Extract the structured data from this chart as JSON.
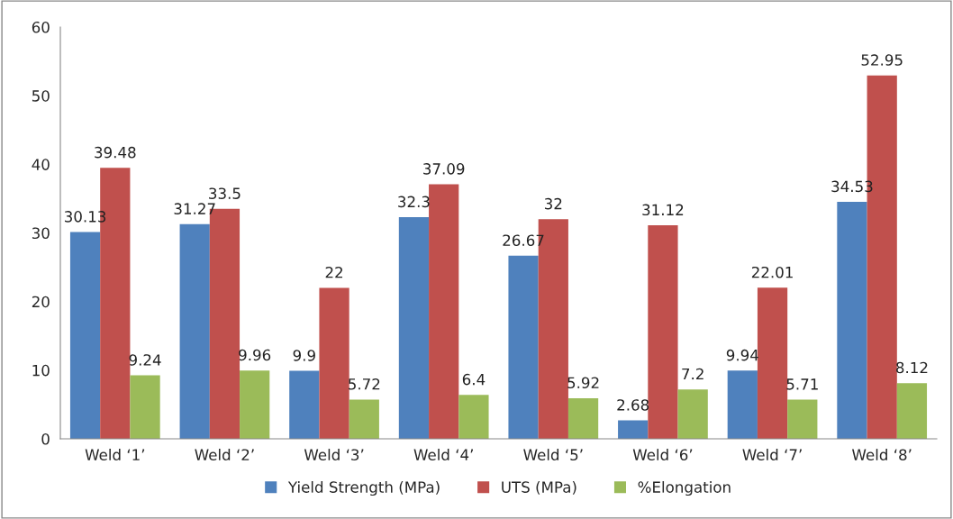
{
  "chart_data": {
    "type": "bar",
    "categories": [
      "Weld ‘1’",
      "Weld ‘2’",
      "Weld ‘3’",
      "Weld ‘4’",
      "Weld ‘5’",
      "Weld ‘6’",
      "Weld ‘7’",
      "Weld ‘8’"
    ],
    "series": [
      {
        "name": "Yield Strength (MPa)",
        "color": "#4f81bd",
        "values": [
          30.13,
          31.27,
          9.9,
          32.3,
          26.67,
          2.68,
          9.94,
          34.53
        ]
      },
      {
        "name": "UTS (MPa)",
        "color": "#c0504d",
        "values": [
          39.48,
          33.5,
          22,
          37.09,
          32,
          31.12,
          22.01,
          52.95
        ]
      },
      {
        "name": "%Elongation",
        "color": "#9bbb59",
        "values": [
          9.24,
          9.96,
          5.72,
          6.4,
          5.92,
          7.2,
          5.71,
          8.12
        ]
      }
    ],
    "ylim": [
      0,
      60
    ],
    "yticks": [
      0,
      10,
      20,
      30,
      40,
      50,
      60
    ],
    "data_labels": true,
    "grid": false,
    "legend": "bottom"
  }
}
